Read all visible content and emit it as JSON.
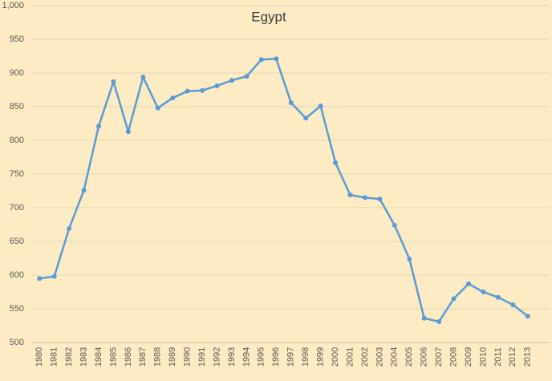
{
  "chart_data": {
    "type": "line",
    "title": "Egypt",
    "categories": [
      "1980",
      "1981",
      "1982",
      "1983",
      "1984",
      "1985",
      "1986",
      "1987",
      "1988",
      "1989",
      "1990",
      "1991",
      "1992",
      "1993",
      "1994",
      "1995",
      "1996",
      "1997",
      "1998",
      "1999",
      "2000",
      "2001",
      "2002",
      "2003",
      "2004",
      "2005",
      "2006",
      "2007",
      "2008",
      "2009",
      "2010",
      "2011",
      "2012",
      "2013"
    ],
    "series": [
      {
        "name": "Egypt",
        "color": "#5b9bd5",
        "values": [
          595,
          598,
          669,
          726,
          821,
          887,
          813,
          894,
          848,
          863,
          873,
          874,
          881,
          889,
          895,
          920,
          921,
          856,
          833,
          851,
          767,
          719,
          715,
          713,
          674,
          624,
          536,
          531,
          565,
          587,
          575,
          567,
          556,
          539
        ]
      }
    ],
    "ylim": [
      500,
      1000
    ],
    "yticks": [
      500,
      550,
      600,
      650,
      700,
      750,
      800,
      850,
      900,
      950,
      {
        "value": 1000,
        "label": "1,000"
      }
    ],
    "grid": true
  }
}
